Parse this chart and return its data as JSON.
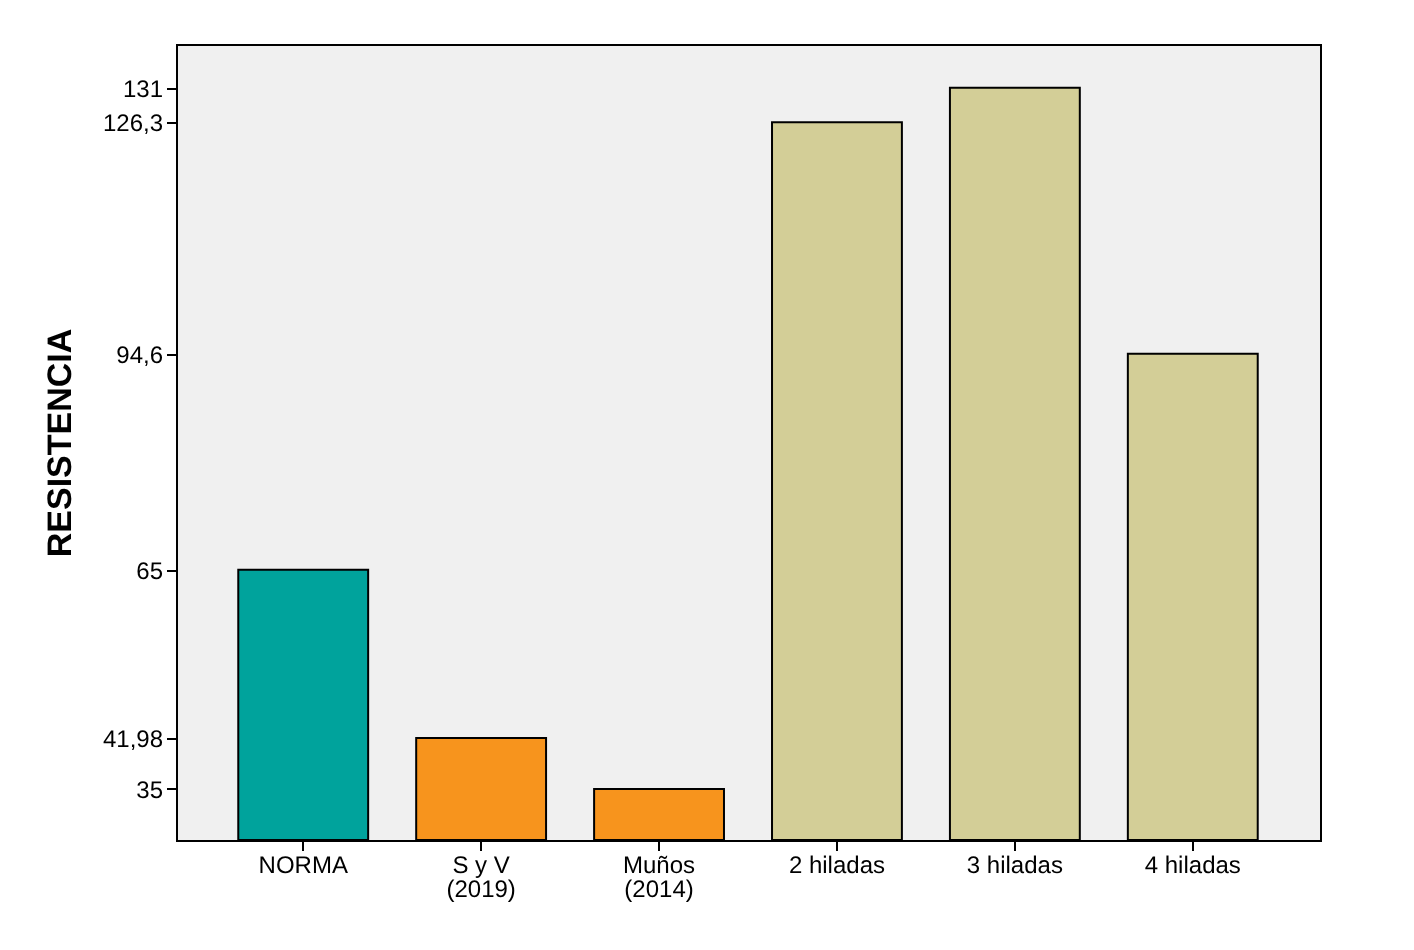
{
  "chart_data": {
    "type": "bar",
    "ylabel": "RESISTENCIA",
    "categories": [
      "NORMA",
      "S y V\n(2019)",
      "Muños\n(2014)",
      "2 hiladas",
      "3 hiladas",
      "4 hiladas"
    ],
    "values": [
      65,
      41.98,
      35,
      126.3,
      131,
      94.6
    ],
    "colors": [
      "#00a39c",
      "#f7941d",
      "#f7941d",
      "#d3ce97",
      "#d3ce97",
      "#d3ce97"
    ],
    "ylim": [
      28,
      137
    ],
    "yticks": [
      35,
      {
        "value": 41.98,
        "label": "41,98"
      },
      65,
      {
        "value": 94.6,
        "label": "94,6"
      },
      {
        "value": 126.3,
        "label": "126,3"
      },
      131
    ],
    "grid": false
  }
}
